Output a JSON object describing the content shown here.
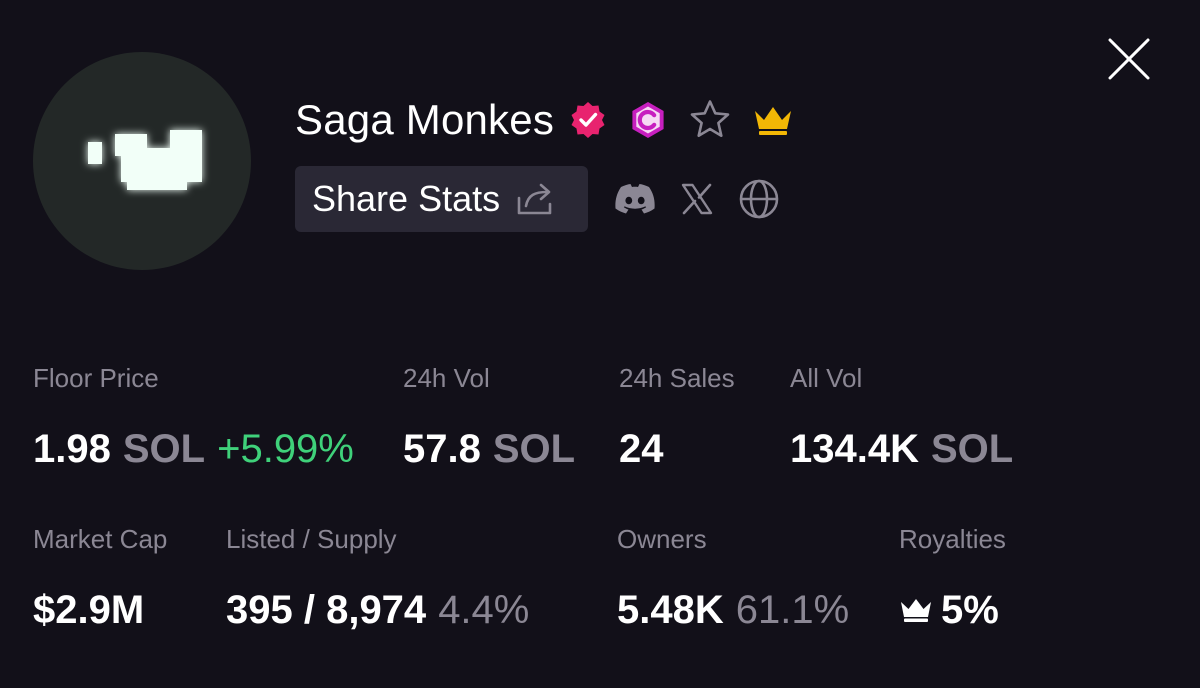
{
  "collection": {
    "name": "Saga Monkes",
    "share_label": "Share Stats"
  },
  "icons": {
    "close": "close-icon",
    "verified": "verified-badge-icon",
    "creator_badge": "c-badge-icon",
    "favorite": "star-icon",
    "premium": "crown-icon",
    "share": "share-icon",
    "discord": "discord-icon",
    "x": "x-icon",
    "website": "globe-icon"
  },
  "colors": {
    "background": "#121019",
    "verified": "#e8236f",
    "creator_badge": "#c71fbf",
    "crown": "#f2b705",
    "positive": "#3fd17a",
    "muted": "#8b8794"
  },
  "stats": {
    "floor_price": {
      "label": "Floor Price",
      "value": "1.98",
      "unit": "SOL",
      "change": "+5.99%"
    },
    "vol_24h": {
      "label": "24h Vol",
      "value": "57.8",
      "unit": "SOL"
    },
    "sales_24h": {
      "label": "24h Sales",
      "value": "24"
    },
    "all_vol": {
      "label": "All Vol",
      "value": "134.4K",
      "unit": "SOL"
    },
    "market_cap": {
      "label": "Market Cap",
      "value": "$2.9M"
    },
    "listed_supply": {
      "label": "Listed / Supply",
      "value": "395 / 8,974",
      "percent": "4.4%"
    },
    "owners": {
      "label": "Owners",
      "value": "5.48K",
      "percent": "61.1%"
    },
    "royalties": {
      "label": "Royalties",
      "value": "5%"
    }
  }
}
